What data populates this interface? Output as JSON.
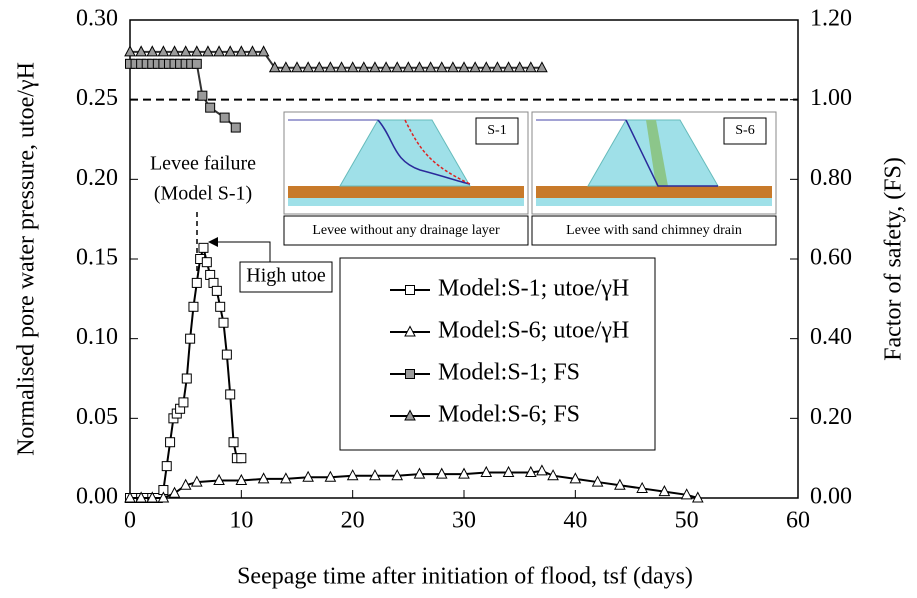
{
  "chart_data": {
    "type": "line",
    "xlabel": "Seepage time after initiation of flood, tsf (days)",
    "ylabel": "Normalised pore water pressure, utoe/γH",
    "y2label": "Factor of safety, (FS)",
    "xlim": [
      0,
      60
    ],
    "xticks": [
      0,
      10,
      20,
      30,
      40,
      50,
      60
    ],
    "ylim": [
      0,
      0.3
    ],
    "yticks": [
      {
        "value": 0,
        "label": "0.00"
      },
      {
        "value": 0.05,
        "label": "0.05"
      },
      {
        "value": 0.1,
        "label": "0.10"
      },
      {
        "value": 0.15,
        "label": "0.15"
      },
      {
        "value": 0.2,
        "label": "0.20"
      },
      {
        "value": 0.25,
        "label": "0.25"
      },
      {
        "value": 0.3,
        "label": "0.30"
      }
    ],
    "y2lim": [
      0,
      1.2
    ],
    "y2ticks": [
      {
        "value": 0,
        "label": "0.00"
      },
      {
        "value": 0.2,
        "label": "0.20"
      },
      {
        "value": 0.4,
        "label": "0.40"
      },
      {
        "value": 0.6,
        "label": "0.60"
      },
      {
        "value": 0.8,
        "label": "0.80"
      },
      {
        "value": 1,
        "label": "1.00"
      },
      {
        "value": 1.2,
        "label": "1.20"
      }
    ],
    "reference_line": {
      "value": 1,
      "axis": "y2"
    },
    "series": [
      {
        "name": "Model:S-1; utoe/γH",
        "marker": "square",
        "color": "#ffffff",
        "x": [
          0,
          0.5,
          1,
          1.5,
          2,
          2.5,
          3,
          3.3,
          3.6,
          3.9,
          4.2,
          4.5,
          4.8,
          5.1,
          5.4,
          5.7,
          6,
          6.3,
          6.6,
          6.9,
          7.2,
          7.5,
          7.8,
          8.1,
          8.4,
          8.7,
          9,
          9.3,
          9.6,
          10
        ],
        "values": [
          0,
          0,
          0,
          0,
          0,
          0,
          0.005,
          0.02,
          0.035,
          0.05,
          0.053,
          0.056,
          0.06,
          0.075,
          0.1,
          0.12,
          0.135,
          0.15,
          0.157,
          0.148,
          0.14,
          0.135,
          0.13,
          0.12,
          0.11,
          0.09,
          0.065,
          0.035,
          0.025,
          0.025
        ]
      },
      {
        "name": "Model:S-6; utoe/γH",
        "marker": "triangle",
        "color": "#ffffff",
        "x": [
          0,
          1,
          2,
          3,
          4,
          5,
          6,
          8,
          10,
          12,
          14,
          16,
          18,
          20,
          22,
          24,
          26,
          28,
          30,
          32,
          34,
          36,
          37,
          38,
          40,
          42,
          44,
          46,
          48,
          50,
          51
        ],
        "values": [
          0,
          0,
          0,
          0,
          0.003,
          0.008,
          0.01,
          0.011,
          0.011,
          0.012,
          0.012,
          0.013,
          0.013,
          0.014,
          0.014,
          0.014,
          0.015,
          0.015,
          0.015,
          0.016,
          0.016,
          0.016,
          0.017,
          0.014,
          0.012,
          0.01,
          0.008,
          0.006,
          0.004,
          0.002,
          0
        ]
      },
      {
        "name": "Model:S-1; FS",
        "marker": "square",
        "color": "#9a9a9a",
        "axis": "y2",
        "x": [
          0,
          0.5,
          1,
          1.5,
          2,
          2.5,
          3,
          3.5,
          4,
          4.5,
          5,
          5.5,
          6,
          6.5,
          7.2,
          8.5,
          9.5
        ],
        "values": [
          1.09,
          1.09,
          1.09,
          1.09,
          1.09,
          1.09,
          1.09,
          1.09,
          1.09,
          1.09,
          1.09,
          1.09,
          1.09,
          1.01,
          0.98,
          0.955,
          0.93
        ]
      },
      {
        "name": "Model:S-6; FS",
        "marker": "triangle",
        "color": "#9a9a9a",
        "axis": "y2",
        "x": [
          0,
          1,
          2,
          3,
          4,
          5,
          6,
          7,
          8,
          9,
          10,
          11,
          12,
          13,
          14,
          15,
          16,
          17,
          18,
          19,
          20,
          21,
          22,
          23,
          24,
          25,
          26,
          27,
          28,
          29,
          30,
          31,
          32,
          33,
          34,
          35,
          36,
          37
        ],
        "values": [
          1.12,
          1.12,
          1.12,
          1.12,
          1.12,
          1.12,
          1.12,
          1.12,
          1.12,
          1.12,
          1.12,
          1.12,
          1.12,
          1.08,
          1.08,
          1.08,
          1.08,
          1.08,
          1.08,
          1.08,
          1.08,
          1.08,
          1.08,
          1.08,
          1.08,
          1.08,
          1.08,
          1.08,
          1.08,
          1.08,
          1.08,
          1.08,
          1.08,
          1.08,
          1.08,
          1.08,
          1.08,
          1.08
        ]
      }
    ],
    "annotations": [
      "Levee failure",
      "(Model S-1)",
      "High utoe"
    ],
    "insets": [
      {
        "tag": "S-1",
        "caption": "Levee without any drainage layer"
      },
      {
        "tag": "S-6",
        "caption": "Levee with sand chimney drain"
      }
    ]
  }
}
